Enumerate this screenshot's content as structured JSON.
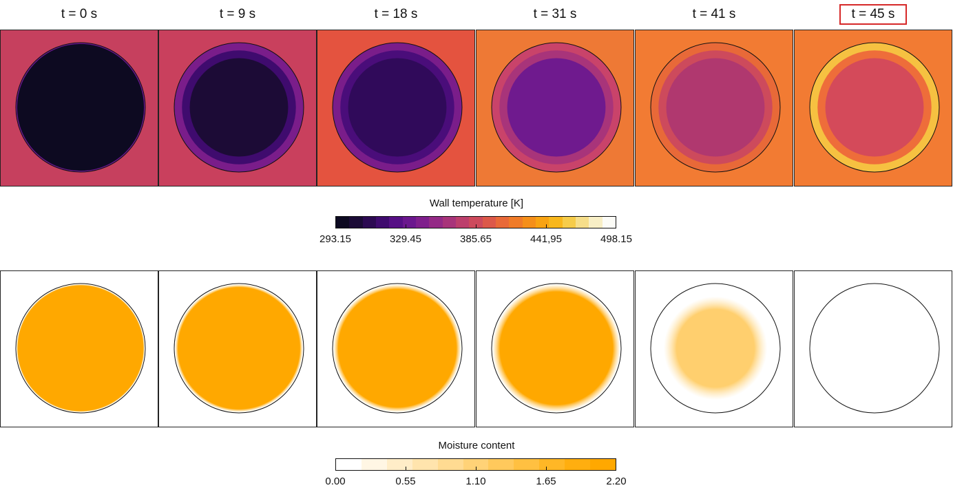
{
  "time_labels": [
    "t = 0 s",
    "t = 9 s",
    "t = 18 s",
    "t = 31 s",
    "t = 41 s",
    "t = 45 s"
  ],
  "highlighted_label": "t = 45 s",
  "temperature_colorbar": {
    "title": "Wall temperature [K]",
    "tick_labels": [
      "293.15",
      "329.45",
      "385.65",
      "441,95",
      "498.15"
    ],
    "colors": [
      "#0d0a21",
      "#1b0b36",
      "#2c0a52",
      "#3f0b6e",
      "#560f85",
      "#6b178e",
      "#7f1f8c",
      "#942a86",
      "#a8347a",
      "#bc3f6c",
      "#cd4a5c",
      "#dc5849",
      "#e86938",
      "#f07b28",
      "#f58f1a",
      "#f8a313",
      "#f8b71c",
      "#f6cc4a",
      "#f6de8a",
      "#f8efc6",
      "#fcfcf7"
    ]
  },
  "moisture_colorbar": {
    "title": "Moisture content",
    "tick_labels": [
      "0.00",
      "0.55",
      "1.10",
      "1.65",
      "2.20"
    ],
    "colors": [
      "#ffffff",
      "#fff6e4",
      "#ffedc8",
      "#ffe4ad",
      "#ffdb92",
      "#ffd277",
      "#ffc95c",
      "#ffc041",
      "#ffb726",
      "#ffae0f",
      "#ffa800"
    ]
  },
  "temperature_panels": [
    {
      "background": "#c6405e",
      "rings": [
        "#6b178e",
        "#0d0a21"
      ]
    },
    {
      "background": "#c9405d",
      "rings": [
        "#7a1d8a",
        "#3f0b6e",
        "#1c0b36"
      ]
    },
    {
      "background": "#e4533f",
      "rings": [
        "#7a1d8a",
        "#4a0d7a",
        "#300a5a"
      ]
    },
    {
      "background": "#ee7935",
      "rings": [
        "#c9436a",
        "#a8347a",
        "#6f1a8e"
      ]
    },
    {
      "background": "#f27b33",
      "rings": [
        "#e86938",
        "#cd4a5c",
        "#b0386f"
      ]
    },
    {
      "background": "#f27b33",
      "rings": [
        "#f6c141",
        "#ee6d3a",
        "#d44a5a"
      ]
    }
  ],
  "moisture_panels": [
    {
      "fill": "#ffa800",
      "opacity": 1.0,
      "fade": 0.02
    },
    {
      "fill": "#ffa800",
      "opacity": 1.0,
      "fade": 0.05
    },
    {
      "fill": "#ffa800",
      "opacity": 1.0,
      "fade": 0.08
    },
    {
      "fill": "#ffa800",
      "opacity": 1.0,
      "fade": 0.12
    },
    {
      "fill": "#ffcf6e",
      "opacity": 1.0,
      "fade": 0.25
    },
    {
      "fill": "#ffffff",
      "opacity": 0.0,
      "fade": 0.0
    }
  ]
}
